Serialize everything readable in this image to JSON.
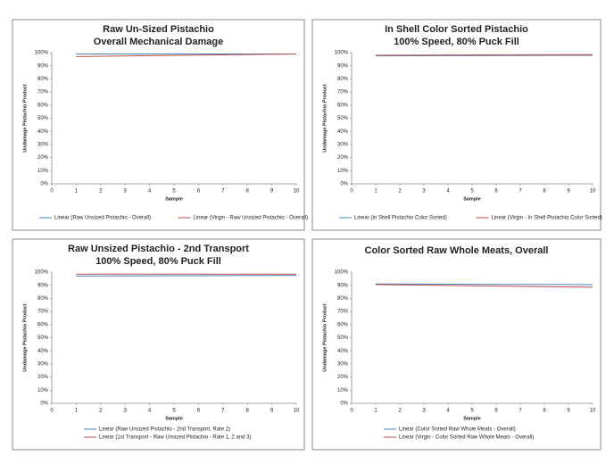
{
  "chart_data": [
    {
      "type": "line",
      "title": [
        "Raw Un-Sized Pistachio",
        "Overall Mechanical Damage"
      ],
      "y_label": "Undamage Pistachio Product",
      "x_label": "Sample",
      "x": [
        1,
        10
      ],
      "series": [
        {
          "name": "Linear (Raw Unsized Pistachio - Overall)",
          "color": "#4a7ebb",
          "values": [
            99,
            99
          ]
        },
        {
          "name": "Linear (Virgin - Raw Unsized Pistachio - Overall)",
          "color": "#be4b48",
          "values": [
            97,
            99
          ]
        }
      ],
      "xlim": [
        0,
        10
      ],
      "xticks": [
        0,
        1,
        2,
        3,
        4,
        5,
        6,
        7,
        8,
        9,
        10
      ],
      "ylim": [
        0,
        100
      ],
      "yticks": [
        {
          "value": 0,
          "label": "0%"
        },
        {
          "value": 10,
          "label": "10%"
        },
        {
          "value": 20,
          "label": "20%"
        },
        {
          "value": 30,
          "label": "30%"
        },
        {
          "value": 40,
          "label": "40%"
        },
        {
          "value": 50,
          "label": "50%"
        },
        {
          "value": 60,
          "label": "60%"
        },
        {
          "value": 70,
          "label": "70%"
        },
        {
          "value": 80,
          "label": "80%"
        },
        {
          "value": 90,
          "label": "90%"
        },
        {
          "value": 100,
          "label": "100%"
        }
      ]
    },
    {
      "type": "line",
      "title": [
        "In Shell Color Sorted Pistachio",
        "100% Speed, 80% Puck Fill"
      ],
      "y_label": "Undamage Pistachio Product",
      "x_label": "Sample",
      "x": [
        1,
        10
      ],
      "series": [
        {
          "name": "Linear (In Shell Pistachio Color Sorted)",
          "color": "#4a7ebb",
          "values": [
            97.5,
            98
          ]
        },
        {
          "name": "Linear (Virgin - In Shell Pistachio Color Sorted)",
          "color": "#be4b48",
          "values": [
            98,
            98.5
          ]
        }
      ],
      "xlim": [
        0,
        10
      ],
      "xticks": [
        0,
        1,
        2,
        3,
        4,
        5,
        6,
        7,
        8,
        9,
        10
      ],
      "ylim": [
        0,
        100
      ],
      "yticks": [
        {
          "value": 0,
          "label": "0%"
        },
        {
          "value": 10,
          "label": "10%"
        },
        {
          "value": 20,
          "label": "20%"
        },
        {
          "value": 30,
          "label": "30%"
        },
        {
          "value": 40,
          "label": "40%"
        },
        {
          "value": 50,
          "label": "50%"
        },
        {
          "value": 60,
          "label": "60%"
        },
        {
          "value": 70,
          "label": "70%"
        },
        {
          "value": 80,
          "label": "80%"
        },
        {
          "value": 90,
          "label": "90%"
        },
        {
          "value": 100,
          "label": "100%"
        }
      ]
    },
    {
      "type": "line",
      "title": [
        "Raw Unsized Pistachio - 2nd Transport",
        "100% Speed, 80% Puck Fill"
      ],
      "y_label": "Undamage Pistachio Product",
      "x_label": "Sample",
      "x": [
        1,
        10
      ],
      "series": [
        {
          "name": "Linear (Raw Unsized Pistachio - 2nd Transport, Rate 2)",
          "color": "#4a7ebb",
          "values": [
            97,
            97.5
          ]
        },
        {
          "name": "Linear (1st Transport - Raw Unsized Pistachio -  Rate 1, 2 and 3)",
          "color": "#be4b48",
          "values": [
            98.5,
            98.5
          ]
        }
      ],
      "xlim": [
        0,
        10
      ],
      "xticks": [
        0,
        1,
        2,
        3,
        4,
        5,
        6,
        7,
        8,
        9,
        10
      ],
      "ylim": [
        0,
        100
      ],
      "yticks": [
        {
          "value": 0,
          "label": "0%"
        },
        {
          "value": 10,
          "label": "10%"
        },
        {
          "value": 20,
          "label": "20%"
        },
        {
          "value": 30,
          "label": "30%"
        },
        {
          "value": 40,
          "label": "40%"
        },
        {
          "value": 50,
          "label": "50%"
        },
        {
          "value": 60,
          "label": "60%"
        },
        {
          "value": 70,
          "label": "70%"
        },
        {
          "value": 80,
          "label": "80%"
        },
        {
          "value": 90,
          "label": "90%"
        },
        {
          "value": 100,
          "label": "100%"
        }
      ]
    },
    {
      "type": "line",
      "title": [
        "Color Sorted Raw Whole Meats,  Overall"
      ],
      "y_label": "Undamage Pistachio Product",
      "x_label": "Sample",
      "x": [
        1,
        10
      ],
      "series": [
        {
          "name": "Linear (Color Sorted Raw Whole Meats - Overall)",
          "color": "#4a7ebb",
          "values": [
            91,
            90.5
          ]
        },
        {
          "name": "Linear (Virgin - Color Sorted Raw Whole Meats -  Overall)",
          "color": "#be4b48",
          "values": [
            90.5,
            88.5
          ]
        }
      ],
      "xlim": [
        0,
        10
      ],
      "xticks": [
        0,
        1,
        2,
        3,
        4,
        5,
        6,
        7,
        8,
        9,
        10
      ],
      "ylim": [
        0,
        100
      ],
      "yticks": [
        {
          "value": 0,
          "label": "0%"
        },
        {
          "value": 10,
          "label": "10%"
        },
        {
          "value": 20,
          "label": "20%"
        },
        {
          "value": 30,
          "label": "30%"
        },
        {
          "value": 40,
          "label": "40%"
        },
        {
          "value": 50,
          "label": "50%"
        },
        {
          "value": 60,
          "label": "60%"
        },
        {
          "value": 70,
          "label": "70%"
        },
        {
          "value": 80,
          "label": "80%"
        },
        {
          "value": 90,
          "label": "90%"
        },
        {
          "value": 100,
          "label": "100%"
        }
      ]
    }
  ]
}
